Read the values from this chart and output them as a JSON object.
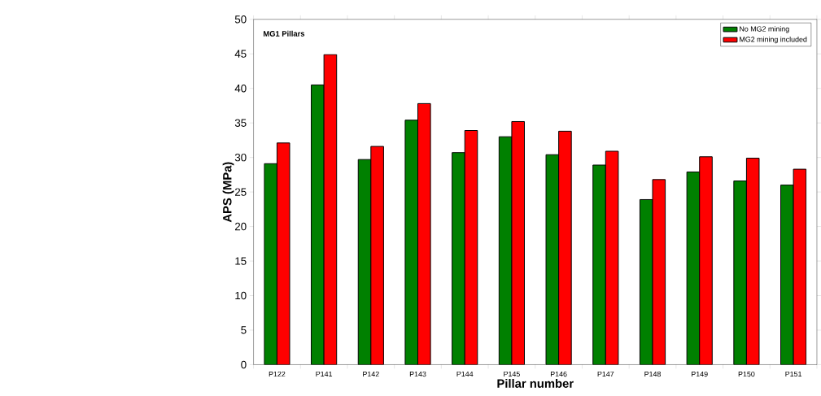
{
  "chart_data": {
    "type": "bar",
    "xlabel": "Pillar number",
    "ylabel": "APS (MPa)",
    "annotations": [
      "MG1 Pillars"
    ],
    "categories": [
      "P122",
      "P141",
      "P142",
      "P143",
      "P144",
      "P145",
      "P146",
      "P147",
      "P148",
      "P149",
      "P150",
      "P151"
    ],
    "series": [
      {
        "name": "No MG2 mining",
        "color": "#008000",
        "values": [
          29.1,
          40.5,
          29.7,
          35.4,
          30.7,
          33.0,
          30.4,
          28.9,
          23.9,
          27.9,
          26.6,
          26.0
        ]
      },
      {
        "name": "MG2 mining included",
        "color": "#ff0000",
        "values": [
          32.1,
          44.9,
          31.6,
          37.8,
          33.9,
          35.2,
          33.8,
          30.9,
          26.8,
          30.1,
          29.9,
          28.3
        ]
      }
    ],
    "ylim": [
      0,
      50
    ],
    "yticks": [
      0,
      5,
      10,
      15,
      20,
      25,
      30,
      35,
      40,
      45,
      50
    ],
    "grid": false,
    "legend": "top right"
  }
}
